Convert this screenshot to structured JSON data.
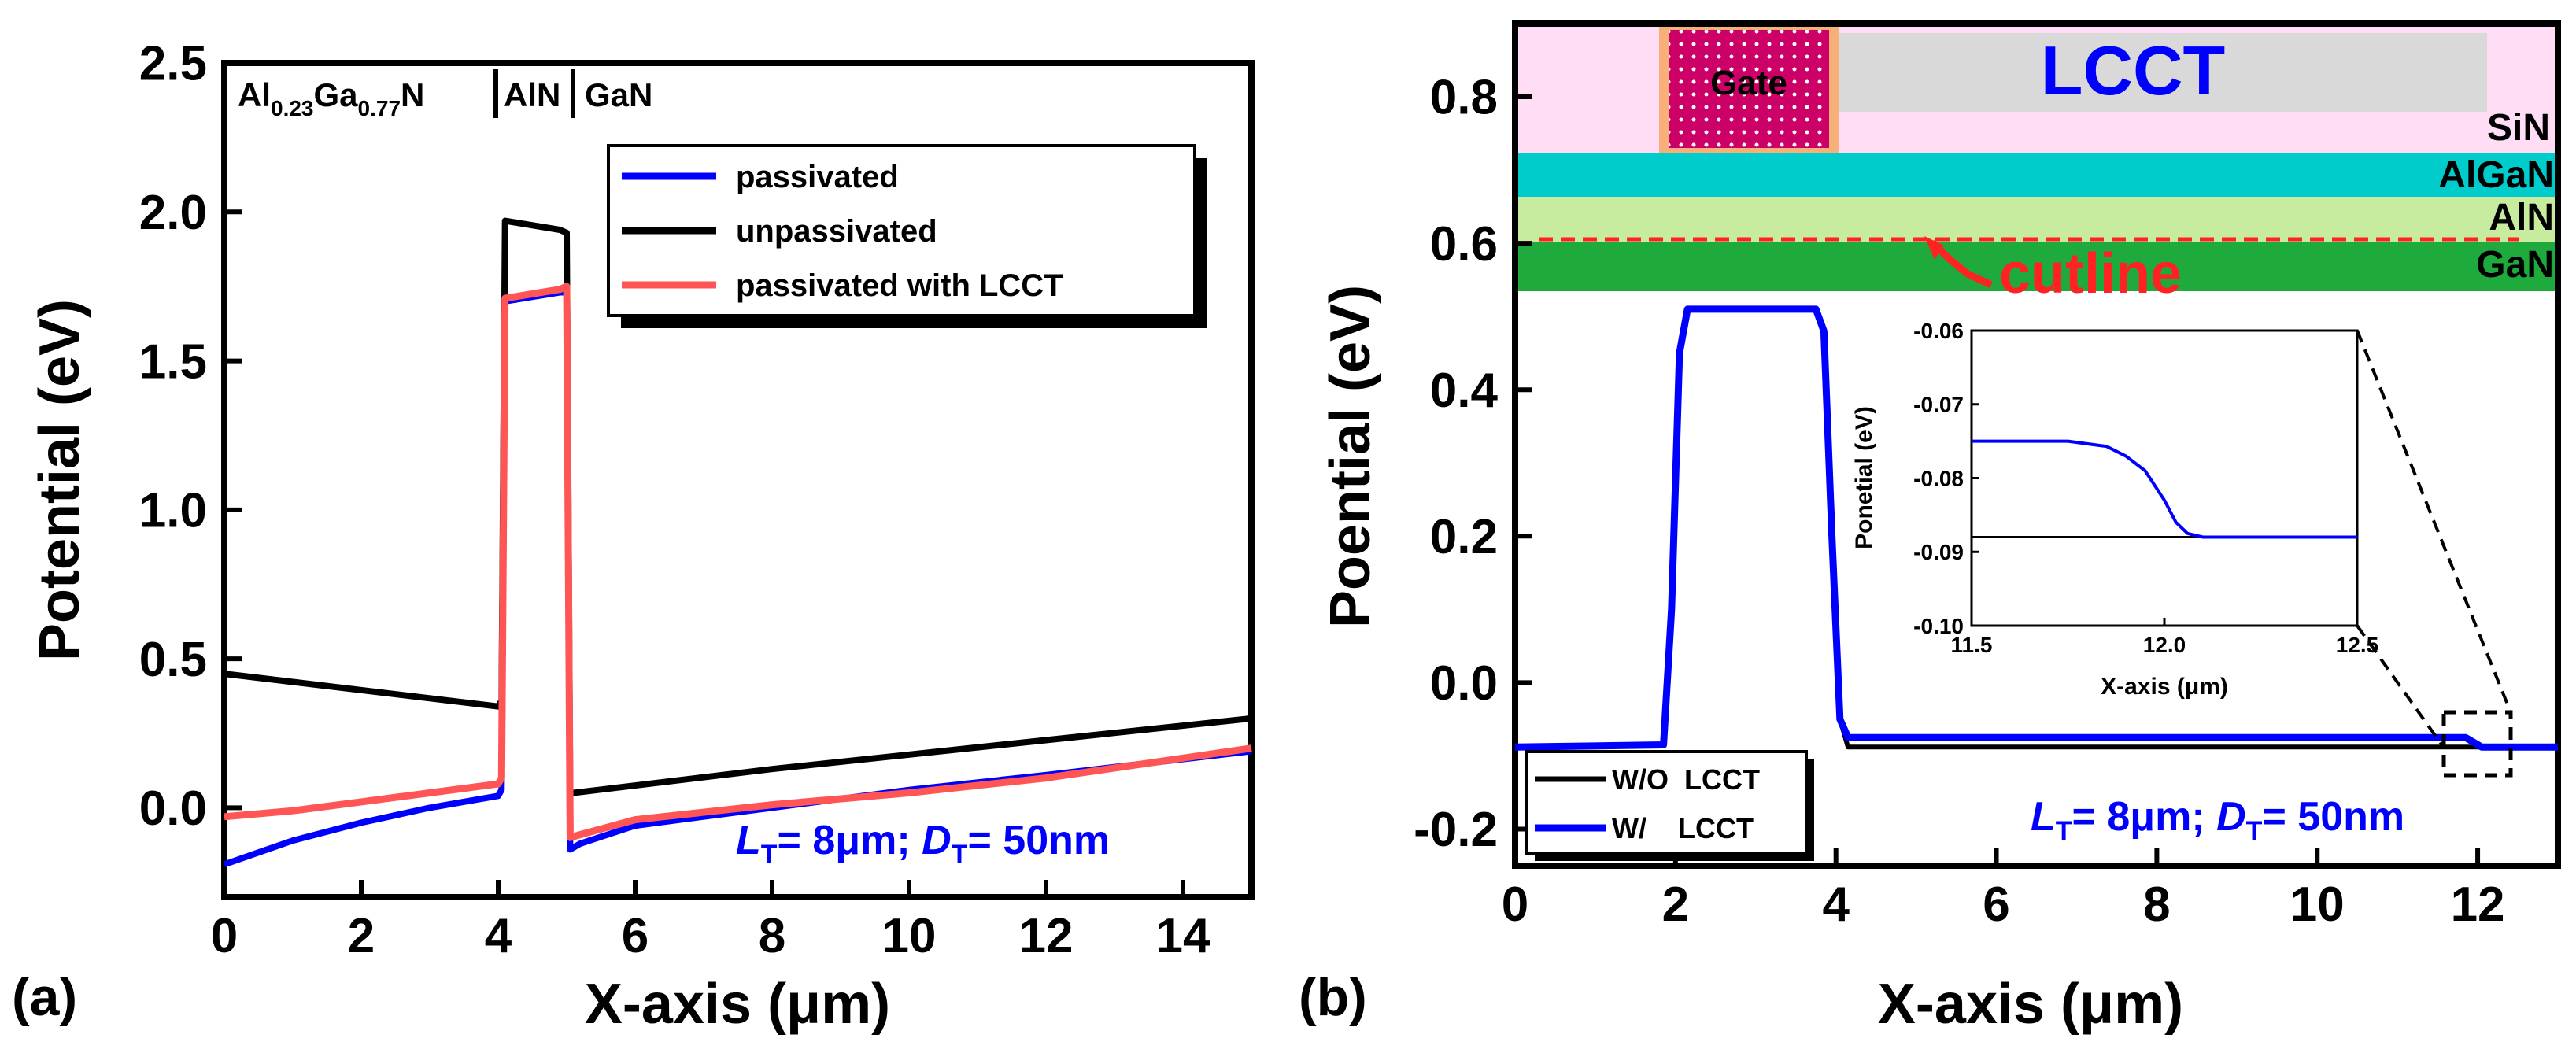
{
  "chart_data": [
    {
      "panel": "(a)",
      "type": "line",
      "xlabel": "X-axis (μm)",
      "ylabel": "Potential (eV)",
      "xlim": [
        0,
        15
      ],
      "ylim": [
        -0.3,
        2.5
      ],
      "xticks": [
        0,
        2,
        4,
        6,
        8,
        10,
        12,
        14
      ],
      "yticks": [
        0.0,
        0.5,
        1.0,
        1.5,
        2.0,
        2.5
      ],
      "ytick_labels": [
        "0.0",
        "0.5",
        "1.0",
        "1.5",
        "2.0",
        "2.5"
      ],
      "region_labels": {
        "algan_base": "Al",
        "algan_sub1": "0.23",
        "algan_mid": "Ga",
        "algan_sub2": "0.77",
        "algan_end": "N",
        "aln": "AlN",
        "gan": "GaN"
      },
      "legend_position": "upper-right",
      "annotation": {
        "l": "L",
        "l_sub": "T",
        "l_val": "= 8μm; ",
        "d": "D",
        "d_sub": "T",
        "d_val": "= 50nm"
      },
      "series": [
        {
          "name": "passivated",
          "color": "#0000ff",
          "x": [
            0,
            0.5,
            1,
            2,
            3,
            4,
            4.05,
            4.1,
            4.9,
            5.0,
            5.05,
            5.2,
            6,
            8,
            10,
            12,
            15
          ],
          "y": [
            -0.19,
            -0.15,
            -0.11,
            -0.05,
            0.0,
            0.04,
            0.06,
            1.7,
            1.73,
            1.73,
            -0.14,
            -0.12,
            -0.06,
            0.0,
            0.06,
            0.11,
            0.19
          ]
        },
        {
          "name": "unpassivated",
          "color": "#000000",
          "x": [
            0,
            4,
            4.05,
            4.1,
            4.9,
            5.0,
            5.05,
            5.1,
            8,
            15
          ],
          "y": [
            0.45,
            0.34,
            0.36,
            1.97,
            1.94,
            1.93,
            0.05,
            0.05,
            0.13,
            0.3
          ]
        },
        {
          "name": "passivated with LCCT",
          "color": "#ff5555",
          "x": [
            0,
            1,
            2,
            3,
            4,
            4.05,
            4.1,
            4.9,
            5.0,
            5.05,
            5.2,
            6,
            8,
            10,
            12,
            15
          ],
          "y": [
            -0.03,
            -0.01,
            0.02,
            0.05,
            0.08,
            0.1,
            1.71,
            1.74,
            1.75,
            -0.1,
            -0.09,
            -0.04,
            0.01,
            0.05,
            0.1,
            0.2
          ]
        }
      ]
    },
    {
      "panel": "(b)",
      "type": "line",
      "xlabel": "X-axis (μm)",
      "ylabel": "Poential (eV)",
      "xlim": [
        0,
        13
      ],
      "ylim": [
        -0.25,
        0.9
      ],
      "xticks": [
        0,
        2,
        4,
        6,
        8,
        10,
        12
      ],
      "yticks": [
        -0.2,
        0.0,
        0.2,
        0.4,
        0.6,
        0.8
      ],
      "ytick_labels": [
        "-0.2",
        "0.0",
        "0.2",
        "0.4",
        "0.6",
        "0.8"
      ],
      "legend_position": "lower-left",
      "annotation": {
        "l": "L",
        "l_sub": "T",
        "l_val": "= 8μm; ",
        "d": "D",
        "d_sub": "T",
        "d_val": "= 50nm"
      },
      "schematic": {
        "gate": "Gate",
        "lcct": "LCCT",
        "sin": "SiN",
        "algan": "AlGaN",
        "aln": "AlN",
        "gan": "GaN",
        "cutline": "cutline"
      },
      "series": [
        {
          "name": "W/O  LCCT",
          "color": "#000000",
          "x": [
            0,
            1.85,
            1.95,
            2.05,
            2.15,
            3.75,
            3.85,
            3.95,
            4.05,
            4.15,
            13
          ],
          "y": [
            -0.088,
            -0.085,
            0.1,
            0.45,
            0.51,
            0.51,
            0.48,
            0.2,
            -0.05,
            -0.088,
            -0.088
          ]
        },
        {
          "name": "W/    LCCT",
          "color": "#0000ff",
          "x": [
            0,
            1.85,
            1.95,
            2.05,
            2.15,
            3.75,
            3.85,
            3.95,
            4.05,
            4.15,
            11.85,
            12.05,
            13
          ],
          "y": [
            -0.088,
            -0.085,
            0.1,
            0.45,
            0.51,
            0.51,
            0.48,
            0.2,
            -0.05,
            -0.075,
            -0.075,
            -0.088,
            -0.088
          ]
        }
      ],
      "inset": {
        "xlabel": "X-axis (μm)",
        "ylabel": "Ponetial (eV)",
        "xlim": [
          11.5,
          12.5
        ],
        "ylim": [
          -0.1,
          -0.06
        ],
        "xticks": [
          11.5,
          12.0,
          12.5
        ],
        "xtick_labels": [
          "11.5",
          "12.0",
          "12.5"
        ],
        "yticks": [
          -0.1,
          -0.09,
          -0.08,
          -0.07,
          -0.06
        ],
        "ytick_labels": [
          "-0.10",
          "-0.09",
          "-0.08",
          "-0.07",
          "-0.06"
        ],
        "series": [
          {
            "name": "W/O  LCCT",
            "color": "#000000",
            "x": [
              11.5,
              12.5
            ],
            "y": [
              -0.088,
              -0.088
            ]
          },
          {
            "name": "W/    LCCT",
            "color": "#0000ff",
            "x": [
              11.5,
              11.75,
              11.85,
              11.9,
              11.95,
              12.0,
              12.03,
              12.06,
              12.1,
              12.5
            ],
            "y": [
              -0.075,
              -0.075,
              -0.0757,
              -0.077,
              -0.079,
              -0.083,
              -0.086,
              -0.0875,
              -0.088,
              -0.088
            ]
          }
        ]
      }
    }
  ]
}
